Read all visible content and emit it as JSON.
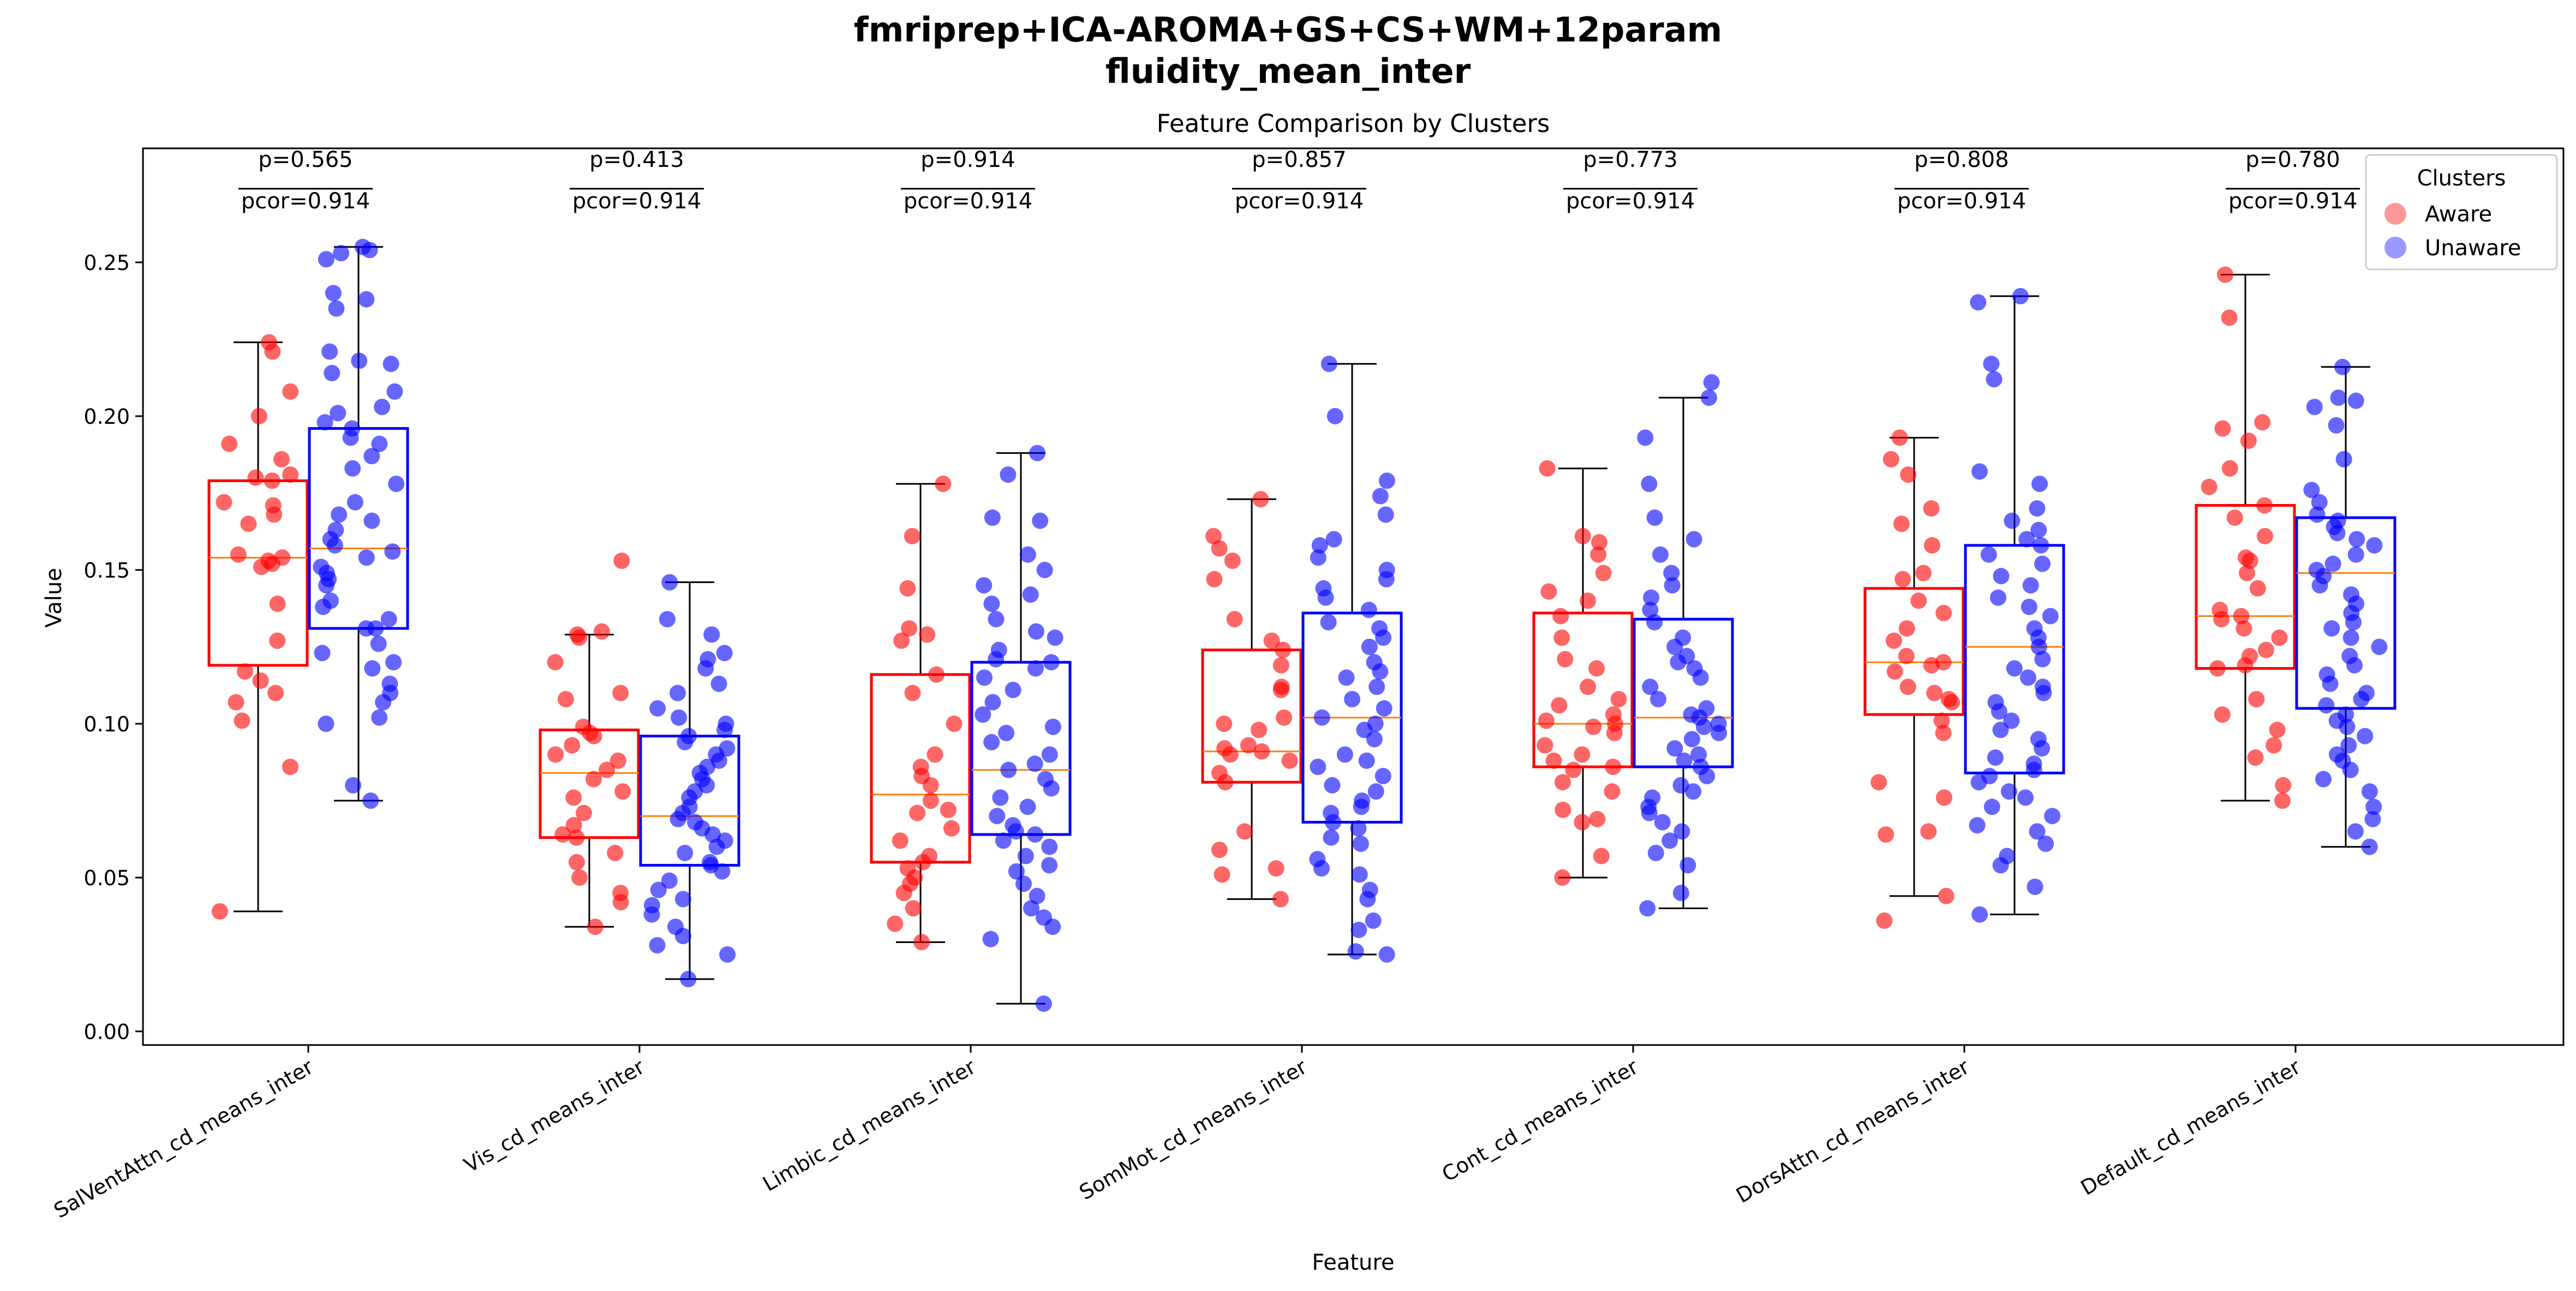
{
  "suptitle_line1": "fmriprep+ICA-AROMA+GS+CS+WM+12param",
  "suptitle_line2": "fluidity_mean_inter",
  "chart_data": {
    "type": "box",
    "title": "Feature Comparison by Clusters",
    "xlabel": "Feature",
    "ylabel": "Value",
    "ylim": [
      -0.005,
      0.29
    ],
    "yticks": [
      0.0,
      0.05,
      0.1,
      0.15,
      0.2,
      0.25
    ],
    "ytick_labels": [
      "0.00",
      "0.05",
      "0.10",
      "0.15",
      "0.20",
      "0.25"
    ],
    "grid": false,
    "legend": {
      "title": "Clusters",
      "placement": "top-right",
      "entries": [
        "Aware",
        "Unaware"
      ]
    },
    "colors": {
      "Aware": "#ff0000",
      "Unaware": "#0000ff",
      "median": "#ff7f0e"
    },
    "categories": [
      "SalVentAttn_cd_means_inter",
      "Vis_cd_means_inter",
      "Limbic_cd_means_inter",
      "SomMot_cd_means_inter",
      "Cont_cd_means_inter",
      "DorsAttn_cd_means_inter",
      "Default_cd_means_inter"
    ],
    "p_labels": [
      "p=0.565",
      "p=0.413",
      "p=0.914",
      "p=0.857",
      "p=0.773",
      "p=0.808",
      "p=0.780"
    ],
    "pcor_labels": [
      "pcor=0.914",
      "pcor=0.914",
      "pcor=0.914",
      "pcor=0.914",
      "pcor=0.914",
      "pcor=0.914",
      "pcor=0.914"
    ],
    "series": [
      {
        "name": "Aware",
        "boxes": [
          {
            "whislo": 0.039,
            "q1": 0.119,
            "med": 0.154,
            "q3": 0.179,
            "whishi": 0.224
          },
          {
            "whislo": 0.034,
            "q1": 0.063,
            "med": 0.084,
            "q3": 0.098,
            "whishi": 0.129
          },
          {
            "whislo": 0.029,
            "q1": 0.055,
            "med": 0.077,
            "q3": 0.116,
            "whishi": 0.178
          },
          {
            "whislo": 0.043,
            "q1": 0.081,
            "med": 0.091,
            "q3": 0.124,
            "whishi": 0.173
          },
          {
            "whislo": 0.05,
            "q1": 0.086,
            "med": 0.1,
            "q3": 0.136,
            "whishi": 0.183
          },
          {
            "whislo": 0.044,
            "q1": 0.103,
            "med": 0.12,
            "q3": 0.144,
            "whishi": 0.193
          },
          {
            "whislo": 0.075,
            "q1": 0.118,
            "med": 0.135,
            "q3": 0.171,
            "whishi": 0.246
          }
        ],
        "points": [
          [
            0.039,
            0.086,
            0.101,
            0.107,
            0.11,
            0.114,
            0.117,
            0.127,
            0.139,
            0.151,
            0.152,
            0.153,
            0.154,
            0.155,
            0.165,
            0.168,
            0.171,
            0.172,
            0.179,
            0.18,
            0.181,
            0.186,
            0.191,
            0.2,
            0.208,
            0.221,
            0.224
          ],
          [
            0.034,
            0.042,
            0.045,
            0.05,
            0.055,
            0.058,
            0.063,
            0.064,
            0.067,
            0.071,
            0.076,
            0.078,
            0.082,
            0.085,
            0.088,
            0.09,
            0.093,
            0.096,
            0.097,
            0.099,
            0.108,
            0.11,
            0.12,
            0.128,
            0.129,
            0.13,
            0.153
          ],
          [
            0.029,
            0.035,
            0.04,
            0.045,
            0.048,
            0.05,
            0.053,
            0.055,
            0.057,
            0.062,
            0.066,
            0.071,
            0.072,
            0.075,
            0.08,
            0.083,
            0.086,
            0.09,
            0.1,
            0.11,
            0.116,
            0.127,
            0.129,
            0.131,
            0.144,
            0.161,
            0.178
          ],
          [
            0.043,
            0.051,
            0.053,
            0.059,
            0.065,
            0.081,
            0.084,
            0.088,
            0.09,
            0.091,
            0.092,
            0.093,
            0.098,
            0.1,
            0.102,
            0.111,
            0.112,
            0.119,
            0.124,
            0.127,
            0.134,
            0.147,
            0.153,
            0.157,
            0.161,
            0.173
          ],
          [
            0.05,
            0.057,
            0.068,
            0.069,
            0.072,
            0.078,
            0.081,
            0.085,
            0.086,
            0.088,
            0.09,
            0.093,
            0.097,
            0.099,
            0.1,
            0.101,
            0.103,
            0.106,
            0.108,
            0.112,
            0.118,
            0.121,
            0.128,
            0.135,
            0.14,
            0.143,
            0.149,
            0.155,
            0.159,
            0.161,
            0.183
          ],
          [
            0.036,
            0.044,
            0.064,
            0.065,
            0.076,
            0.081,
            0.097,
            0.101,
            0.107,
            0.108,
            0.11,
            0.112,
            0.117,
            0.119,
            0.12,
            0.122,
            0.127,
            0.131,
            0.136,
            0.14,
            0.147,
            0.149,
            0.158,
            0.165,
            0.17,
            0.181,
            0.186,
            0.193
          ],
          [
            0.075,
            0.08,
            0.089,
            0.093,
            0.098,
            0.103,
            0.108,
            0.118,
            0.119,
            0.122,
            0.124,
            0.128,
            0.131,
            0.134,
            0.135,
            0.137,
            0.144,
            0.149,
            0.153,
            0.154,
            0.161,
            0.167,
            0.171,
            0.177,
            0.183,
            0.192,
            0.196,
            0.198,
            0.232,
            0.246
          ]
        ]
      },
      {
        "name": "Unaware",
        "boxes": [
          {
            "whislo": 0.075,
            "q1": 0.131,
            "med": 0.157,
            "q3": 0.196,
            "whishi": 0.255
          },
          {
            "whislo": 0.017,
            "q1": 0.054,
            "med": 0.07,
            "q3": 0.096,
            "whishi": 0.146
          },
          {
            "whislo": 0.009,
            "q1": 0.064,
            "med": 0.085,
            "q3": 0.12,
            "whishi": 0.188
          },
          {
            "whislo": 0.025,
            "q1": 0.068,
            "med": 0.102,
            "q3": 0.136,
            "whishi": 0.217
          },
          {
            "whislo": 0.04,
            "q1": 0.086,
            "med": 0.102,
            "q3": 0.134,
            "whishi": 0.206
          },
          {
            "whislo": 0.038,
            "q1": 0.084,
            "med": 0.125,
            "q3": 0.158,
            "whishi": 0.239
          },
          {
            "whislo": 0.06,
            "q1": 0.105,
            "med": 0.149,
            "q3": 0.167,
            "whishi": 0.216
          }
        ],
        "points": [
          [
            0.075,
            0.08,
            0.1,
            0.102,
            0.107,
            0.11,
            0.113,
            0.118,
            0.12,
            0.123,
            0.126,
            0.131,
            0.131,
            0.134,
            0.138,
            0.14,
            0.145,
            0.147,
            0.149,
            0.151,
            0.154,
            0.156,
            0.158,
            0.16,
            0.163,
            0.166,
            0.168,
            0.172,
            0.178,
            0.183,
            0.187,
            0.191,
            0.193,
            0.196,
            0.198,
            0.201,
            0.203,
            0.208,
            0.214,
            0.217,
            0.218,
            0.221,
            0.235,
            0.238,
            0.24,
            0.251,
            0.253,
            0.254,
            0.255
          ],
          [
            0.017,
            0.025,
            0.028,
            0.031,
            0.034,
            0.038,
            0.041,
            0.043,
            0.046,
            0.049,
            0.052,
            0.054,
            0.055,
            0.058,
            0.06,
            0.062,
            0.064,
            0.066,
            0.068,
            0.069,
            0.071,
            0.073,
            0.076,
            0.078,
            0.08,
            0.082,
            0.084,
            0.086,
            0.088,
            0.09,
            0.092,
            0.094,
            0.096,
            0.098,
            0.1,
            0.102,
            0.105,
            0.11,
            0.113,
            0.118,
            0.121,
            0.123,
            0.129,
            0.134,
            0.146
          ],
          [
            0.009,
            0.03,
            0.034,
            0.037,
            0.04,
            0.044,
            0.048,
            0.052,
            0.054,
            0.057,
            0.06,
            0.062,
            0.064,
            0.065,
            0.067,
            0.07,
            0.073,
            0.076,
            0.079,
            0.082,
            0.085,
            0.087,
            0.09,
            0.094,
            0.097,
            0.099,
            0.103,
            0.107,
            0.111,
            0.115,
            0.118,
            0.12,
            0.121,
            0.124,
            0.128,
            0.13,
            0.134,
            0.139,
            0.142,
            0.145,
            0.15,
            0.155,
            0.166,
            0.167,
            0.181,
            0.188
          ],
          [
            0.025,
            0.026,
            0.033,
            0.036,
            0.043,
            0.046,
            0.051,
            0.053,
            0.056,
            0.061,
            0.063,
            0.066,
            0.068,
            0.071,
            0.073,
            0.075,
            0.078,
            0.08,
            0.083,
            0.086,
            0.088,
            0.09,
            0.095,
            0.098,
            0.1,
            0.102,
            0.105,
            0.108,
            0.112,
            0.115,
            0.117,
            0.12,
            0.125,
            0.128,
            0.131,
            0.133,
            0.137,
            0.141,
            0.144,
            0.147,
            0.15,
            0.154,
            0.158,
            0.16,
            0.168,
            0.174,
            0.179,
            0.2,
            0.217
          ],
          [
            0.04,
            0.045,
            0.054,
            0.058,
            0.062,
            0.065,
            0.068,
            0.071,
            0.073,
            0.076,
            0.078,
            0.08,
            0.083,
            0.086,
            0.088,
            0.09,
            0.092,
            0.095,
            0.097,
            0.099,
            0.1,
            0.102,
            0.103,
            0.105,
            0.108,
            0.112,
            0.115,
            0.118,
            0.12,
            0.122,
            0.125,
            0.128,
            0.133,
            0.137,
            0.141,
            0.145,
            0.149,
            0.155,
            0.16,
            0.167,
            0.178,
            0.193,
            0.206,
            0.211
          ],
          [
            0.038,
            0.047,
            0.054,
            0.057,
            0.061,
            0.065,
            0.067,
            0.07,
            0.073,
            0.076,
            0.078,
            0.081,
            0.083,
            0.085,
            0.087,
            0.089,
            0.092,
            0.095,
            0.098,
            0.101,
            0.104,
            0.107,
            0.11,
            0.112,
            0.115,
            0.118,
            0.121,
            0.125,
            0.128,
            0.131,
            0.135,
            0.138,
            0.141,
            0.145,
            0.148,
            0.152,
            0.155,
            0.158,
            0.16,
            0.163,
            0.166,
            0.17,
            0.178,
            0.182,
            0.212,
            0.217,
            0.237,
            0.239
          ],
          [
            0.06,
            0.065,
            0.069,
            0.073,
            0.078,
            0.082,
            0.085,
            0.088,
            0.09,
            0.093,
            0.096,
            0.099,
            0.101,
            0.103,
            0.106,
            0.108,
            0.11,
            0.113,
            0.116,
            0.119,
            0.122,
            0.125,
            0.128,
            0.131,
            0.133,
            0.136,
            0.139,
            0.142,
            0.145,
            0.148,
            0.15,
            0.152,
            0.155,
            0.158,
            0.16,
            0.162,
            0.164,
            0.166,
            0.168,
            0.172,
            0.176,
            0.186,
            0.197,
            0.203,
            0.205,
            0.206,
            0.216
          ]
        ]
      }
    ]
  }
}
